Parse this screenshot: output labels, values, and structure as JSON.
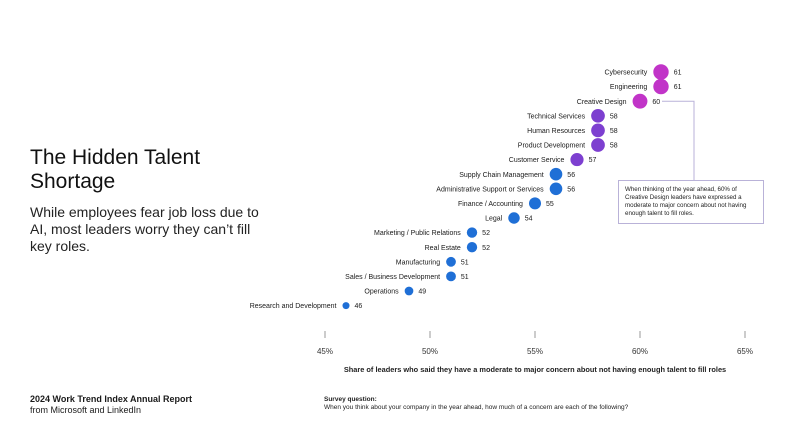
{
  "header": {
    "title": "The Hidden Talent Shortage",
    "subtitle": "While employees fear job loss due to AI, most leaders worry they can’t fill key roles."
  },
  "footer": {
    "report_title": "2024 Work Trend Index Annual Report",
    "report_source": "from Microsoft and LinkedIn",
    "survey_label": "Survey question:",
    "survey_text": "When you think about your company in the year ahead, how much of a concern are each of the following?"
  },
  "annotation": {
    "text": "When thinking of the year ahead, 60% of Creative Design leaders have expressed a moderate to major concern about not having enough talent to fill roles."
  },
  "chart_data": {
    "type": "scatter",
    "xlabel": "Share of leaders who said they have a moderate to major concern about not having enough talent to fill roles",
    "ylabel": "",
    "xlim": [
      45,
      65
    ],
    "x_ticks": [
      "45%",
      "50%",
      "55%",
      "60%",
      "65%"
    ],
    "x_tick_values": [
      45,
      50,
      55,
      60,
      65
    ],
    "grid": false,
    "categories": [
      "Cybersecurity",
      "Engineering",
      "Creative Design",
      "Technical Services",
      "Human Resources",
      "Product Development",
      "Customer Service",
      "Supply Chain Management",
      "Administrative Support or Services",
      "Finance / Accounting",
      "Legal",
      "Marketing / Public Relations",
      "Real Estate",
      "Manufacturing",
      "Sales / Business Development",
      "Operations",
      "Research and Development"
    ],
    "values": [
      61,
      61,
      60,
      58,
      58,
      58,
      57,
      56,
      56,
      55,
      54,
      52,
      52,
      51,
      51,
      49,
      46
    ],
    "colors": {
      "high": "#c134c8",
      "mid": "#7d3fd0",
      "low": "#1f6fd6",
      "annotation_border": "#b9b2d8",
      "axis_line": "#999999"
    }
  }
}
